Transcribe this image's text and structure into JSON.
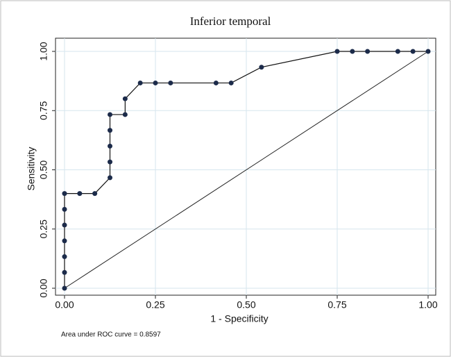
{
  "chart_data": {
    "type": "line",
    "title": "Inferior temporal",
    "x_label": "1 - Specificity",
    "y_label": "Sensitivity",
    "annotation": "Area under ROC curve = 0.8597",
    "x": [
      0,
      0,
      0,
      0,
      0,
      0,
      0,
      0.0417,
      0.0833,
      0.125,
      0.125,
      0.125,
      0.125,
      0.125,
      0.1667,
      0.1667,
      0.2083,
      0.25,
      0.2917,
      0.4167,
      0.4583,
      0.5417,
      0.75,
      0.7917,
      0.8333,
      0.9167,
      0.9583,
      1
    ],
    "values": [
      0,
      0.0667,
      0.1333,
      0.2,
      0.2667,
      0.3333,
      0.4,
      0.4,
      0.4,
      0.4667,
      0.5333,
      0.6,
      0.6667,
      0.7333,
      0.7333,
      0.8,
      0.8667,
      0.8667,
      0.8667,
      0.8667,
      0.8667,
      0.9333,
      1,
      1,
      1,
      1,
      1,
      1
    ],
    "color": "#1c2b4a",
    "xlim": [
      0,
      1
    ],
    "ylim": [
      0,
      1
    ],
    "xticks": [
      {
        "value": 0,
        "label": "0.00"
      },
      {
        "value": 0.25,
        "label": "0.25"
      },
      {
        "value": 0.5,
        "label": "0.50"
      },
      {
        "value": 0.75,
        "label": "0.75"
      },
      {
        "value": 1,
        "label": "1.00"
      }
    ],
    "yticks": [
      {
        "value": 0,
        "label": "0.00"
      },
      {
        "value": 0.25,
        "label": "0.25"
      },
      {
        "value": 0.5,
        "label": "0.50"
      },
      {
        "value": 0.75,
        "label": "0.75"
      },
      {
        "value": 1,
        "label": "1.00"
      }
    ],
    "grid": true
  }
}
